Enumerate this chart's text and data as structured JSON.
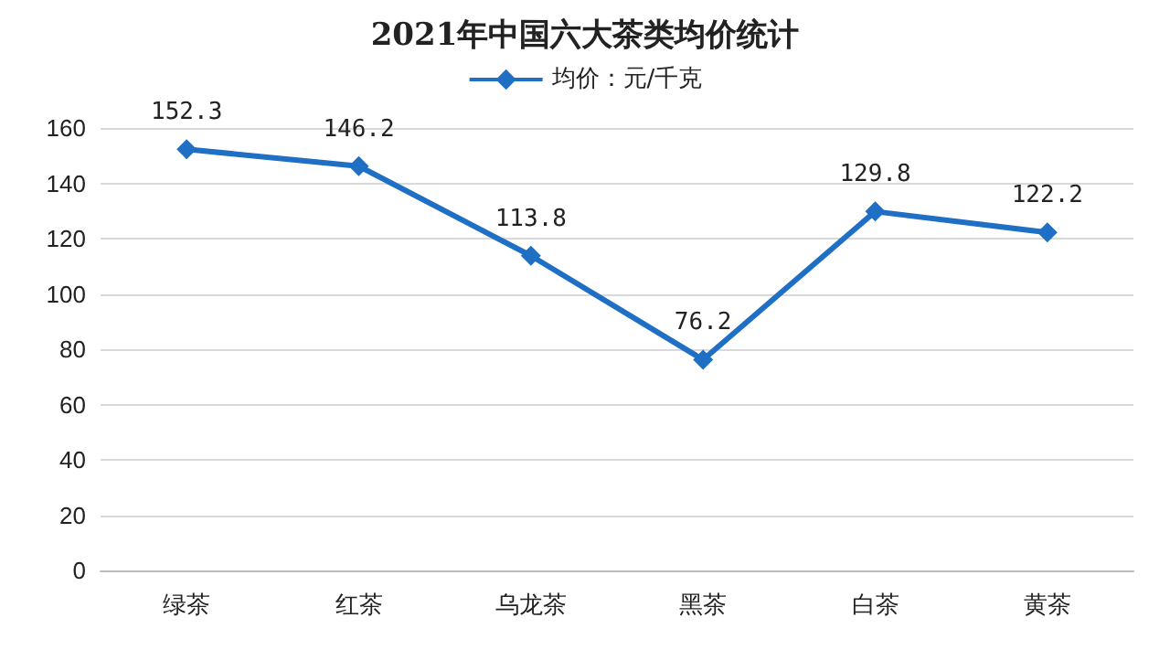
{
  "chart_data": {
    "type": "line",
    "title": "2021年中国六大茶类均价统计",
    "categories": [
      "绿茶",
      "红茶",
      "乌龙茶",
      "黑茶",
      "白茶",
      "黄茶"
    ],
    "series": [
      {
        "name": "均价：元/千克",
        "color": "#1f6fc4",
        "values": [
          152.3,
          146.2,
          113.8,
          76.2,
          129.8,
          122.2
        ]
      }
    ],
    "ylim": [
      0,
      160
    ],
    "yticks": [
      0,
      20,
      40,
      60,
      80,
      100,
      120,
      140,
      160
    ],
    "grid": "y",
    "legend": "top",
    "marker": "diamond",
    "line_style": "solid",
    "data_labels": true
  }
}
